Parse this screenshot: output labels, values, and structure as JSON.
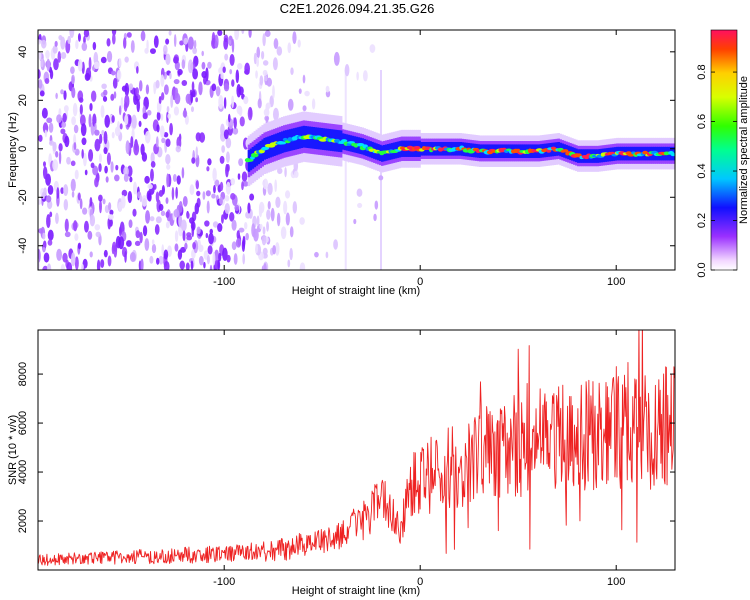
{
  "title": "C2E1.2026.094.21.35.G26",
  "chart_data": [
    {
      "type": "heatmap",
      "name": "spectrogram",
      "xlabel": "Height of straight line (km)",
      "ylabel": "Frequency (Hz)",
      "xlim": [
        -195,
        130
      ],
      "ylim": [
        -50,
        49
      ],
      "xticks": [
        -100,
        0,
        100
      ],
      "xtick_labels": [
        "-100",
        "0",
        "100"
      ],
      "yticks": [
        -40,
        -20,
        0,
        20,
        40
      ],
      "ytick_labels": [
        "-40",
        "-20",
        "0",
        "20",
        "40"
      ],
      "signal_trace": {
        "description": "frequency ridge",
        "x": [
          -88,
          -80,
          -70,
          -60,
          -50,
          -40,
          -30,
          -20,
          -10,
          0,
          10,
          20,
          30,
          40,
          50,
          60,
          70,
          80,
          90,
          100,
          110,
          120,
          130
        ],
        "y": [
          -5,
          0,
          3,
          5,
          4,
          3,
          1,
          -2,
          0,
          0,
          0,
          0,
          -1,
          -1,
          -1,
          -1,
          0,
          -3,
          -3,
          -2,
          -2,
          -2,
          -2
        ]
      },
      "noise_region_x": [
        -195,
        -60
      ],
      "colorbar": {
        "label": "Normalized spectral amplitude",
        "range": [
          0.0,
          0.97
        ],
        "ticks": [
          0.0,
          0.2,
          0.4,
          0.6,
          0.8
        ],
        "tick_labels": [
          "0.0",
          "0.2",
          "0.4",
          "0.6",
          "0.8"
        ]
      }
    },
    {
      "type": "line",
      "name": "snr",
      "xlabel": "Height of straight line (km)",
      "ylabel": "SNR (10 * v/v)",
      "xlim": [
        -195,
        130
      ],
      "ylim": [
        0,
        9800
      ],
      "xticks": [
        -100,
        0,
        100
      ],
      "xtick_labels": [
        "-100",
        "0",
        "100"
      ],
      "yticks": [
        2000,
        4000,
        6000,
        8000
      ],
      "ytick_labels": [
        "2000",
        "4000",
        "6000",
        "8000"
      ],
      "color": "#ee2222",
      "series": [
        {
          "name": "SNR",
          "x": [
            -195,
            -180,
            -160,
            -140,
            -120,
            -100,
            -80,
            -70,
            -60,
            -50,
            -40,
            -35,
            -30,
            -25,
            -20,
            -15,
            -10,
            -5,
            0,
            10,
            20,
            30,
            40,
            50,
            60,
            70,
            80,
            90,
            100,
            110,
            120,
            130
          ],
          "y": [
            400,
            450,
            500,
            550,
            600,
            650,
            750,
            850,
            1000,
            1200,
            1400,
            1700,
            2000,
            2400,
            2700,
            2600,
            1500,
            3300,
            3600,
            4000,
            4300,
            4600,
            4900,
            5100,
            5300,
            5400,
            5500,
            5500,
            5600,
            5600,
            5700,
            6000
          ]
        }
      ]
    }
  ]
}
